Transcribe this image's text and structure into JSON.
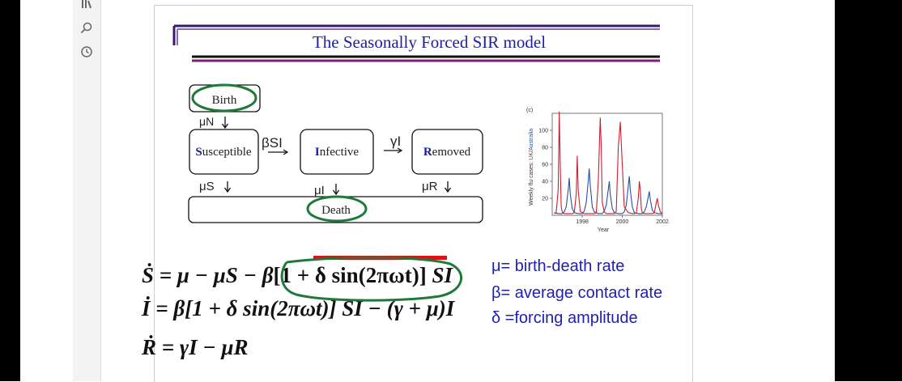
{
  "title": "The Seasonally Forced SIR model",
  "compartments": {
    "birth": "Birth",
    "susceptible_initial": "S",
    "susceptible_rest": "usceptible",
    "infective_initial": "I",
    "infective_rest": "nfective",
    "removed_initial": "R",
    "removed_rest": "emoved",
    "death": "Death"
  },
  "flows": {
    "birth_rate": "μN",
    "infection": "βSI",
    "recovery": "γI",
    "death_s": "μS",
    "death_i": "μI",
    "death_r": "μR"
  },
  "chart_data": {
    "type": "line",
    "panel_label": "(c)",
    "ylabel_parts": [
      "Weekly flu cases: ",
      "UK",
      "/",
      "Australia"
    ],
    "xlabel": "Year",
    "x_ticks": [
      "1998",
      "2000",
      "2002"
    ],
    "y_ticks": [
      20,
      40,
      60,
      80,
      100
    ],
    "xlim": [
      1996.5,
      2002
    ],
    "ylim": [
      0,
      120
    ],
    "series": [
      {
        "name": "UK",
        "color": "#cc1f2f",
        "x": [
          1996.6,
          1996.7,
          1996.8,
          1996.85,
          1996.9,
          1996.95,
          1997.0,
          1997.1,
          1997.3,
          1997.5,
          1997.6,
          1997.7,
          1997.75,
          1997.8,
          1997.9,
          1998.0,
          1998.1,
          1998.2,
          1998.4,
          1998.6,
          1998.7,
          1998.8,
          1998.9,
          1998.95,
          1999.0,
          1999.1,
          1999.2,
          1999.4,
          1999.6,
          1999.7,
          1999.8,
          1999.9,
          2000.0,
          2000.1,
          2000.3,
          2000.5,
          2000.6,
          2000.7,
          2000.8,
          2000.85,
          2000.9,
          2000.95,
          2001.0,
          2001.1,
          2001.3,
          2001.5,
          2001.6,
          2001.7,
          2001.75,
          2001.8,
          2001.9,
          2002.0
        ],
        "values": [
          2,
          3,
          30,
          122,
          60,
          10,
          4,
          2,
          2,
          2,
          3,
          25,
          70,
          30,
          5,
          3,
          2,
          2,
          2,
          2,
          3,
          40,
          115,
          80,
          15,
          4,
          2,
          2,
          2,
          5,
          80,
          110,
          60,
          10,
          3,
          2,
          2,
          3,
          20,
          40,
          30,
          8,
          3,
          2,
          2,
          2,
          3,
          15,
          20,
          12,
          4,
          2
        ]
      },
      {
        "name": "Australia",
        "color": "#2a4f9e",
        "x": [
          1996.6,
          1996.8,
          1997.0,
          1997.1,
          1997.2,
          1997.3,
          1997.35,
          1997.4,
          1997.5,
          1997.6,
          1997.8,
          1998.0,
          1998.1,
          1998.2,
          1998.3,
          1998.35,
          1998.4,
          1998.5,
          1998.6,
          1998.8,
          1999.0,
          1999.1,
          1999.2,
          1999.3,
          1999.35,
          1999.4,
          1999.5,
          1999.6,
          1999.8,
          2000.0,
          2000.1,
          2000.2,
          2000.3,
          2000.35,
          2000.4,
          2000.5,
          2000.6,
          2000.8,
          2001.0,
          2001.1,
          2001.2,
          2001.3,
          2001.35,
          2001.4,
          2001.5,
          2001.6,
          2001.8,
          2002.0
        ],
        "values": [
          3,
          2,
          2,
          4,
          10,
          30,
          44,
          25,
          8,
          3,
          2,
          2,
          5,
          15,
          40,
          55,
          35,
          10,
          4,
          2,
          2,
          5,
          12,
          30,
          40,
          25,
          8,
          3,
          2,
          2,
          4,
          12,
          35,
          46,
          30,
          10,
          3,
          2,
          2,
          4,
          10,
          22,
          28,
          18,
          6,
          3,
          2,
          2
        ]
      }
    ]
  },
  "equations": {
    "s_lhs": "Ṡ",
    "s_part1": " = μ − μS − ",
    "s_beta": "β",
    "s_bracket": "[1 + δ sin(2πωt)]",
    "s_tail": " SI",
    "i_lhs": "İ",
    "i_eq": " = β[1 + δ sin(2πωt)] SI − (γ + μ)I",
    "r_lhs": "Ṙ",
    "r_eq": " = γI − μR"
  },
  "legend": {
    "mu": "μ=  birth-death rate",
    "beta": "β= average contact rate",
    "delta": "δ =forcing amplitude"
  },
  "colors": {
    "title": "#1f1f9f",
    "annotation": "#1f7a3a",
    "underline_red": "#dd1111",
    "legend": "#1f1fb0",
    "rule_purple": "#7a1e7a"
  }
}
